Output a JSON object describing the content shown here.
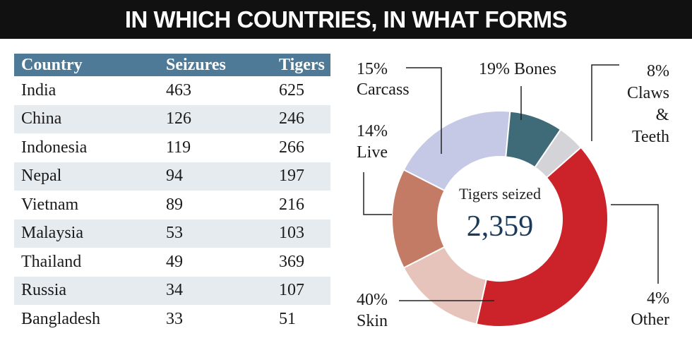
{
  "header": {
    "title": "IN WHICH COUNTRIES, IN WHAT FORMS"
  },
  "table": {
    "columns": [
      "Country",
      "Seizures",
      "Tigers"
    ],
    "rows": [
      [
        "India",
        "463",
        "625"
      ],
      [
        "China",
        "126",
        "246"
      ],
      [
        "Indonesia",
        "119",
        "266"
      ],
      [
        "Nepal",
        "94",
        "197"
      ],
      [
        "Vietnam",
        "89",
        "216"
      ],
      [
        "Malaysia",
        "53",
        "103"
      ],
      [
        "Thailand",
        "49",
        "369"
      ],
      [
        "Russia",
        "34",
        "107"
      ],
      [
        "Bangladesh",
        "33",
        "51"
      ]
    ]
  },
  "chart_data": [
    {
      "type": "table",
      "columns": [
        "Country",
        "Seizures",
        "Tigers"
      ],
      "categories": [
        "India",
        "China",
        "Indonesia",
        "Nepal",
        "Vietnam",
        "Malaysia",
        "Thailand",
        "Russia",
        "Bangladesh"
      ],
      "series": [
        {
          "name": "Seizures",
          "values": [
            463,
            126,
            119,
            94,
            89,
            53,
            49,
            34,
            33
          ]
        },
        {
          "name": "Tigers",
          "values": [
            625,
            246,
            266,
            197,
            216,
            103,
            369,
            107,
            51
          ]
        }
      ]
    },
    {
      "type": "pie",
      "donut": true,
      "center_label": "Tigers seized",
      "center_value": "2,359",
      "slices": [
        {
          "label": "Bones",
          "value_label": "19%",
          "text": "19% Bones",
          "value": 19,
          "color": "#c6c9e6"
        },
        {
          "label": "Claws & Teeth",
          "value_label": "8%",
          "lines": [
            "8%",
            "Claws",
            "&",
            "Teeth"
          ],
          "value": 8,
          "color": "#3f6b78"
        },
        {
          "label": "Other",
          "value_label": "4%",
          "lines": [
            "4%",
            "Other"
          ],
          "value": 4,
          "color": "#d4d4d8"
        },
        {
          "label": "Skin",
          "value_label": "40%",
          "lines": [
            "40%",
            "Skin"
          ],
          "value": 40,
          "color": "#cc2229"
        },
        {
          "label": "Live",
          "value_label": "14%",
          "lines": [
            "14%",
            "Live"
          ],
          "value": 14,
          "color": "#e6c4bc"
        },
        {
          "label": "Carcass",
          "value_label": "15%",
          "lines": [
            "15%",
            "Carcass"
          ],
          "value": 15,
          "color": "#c47b66"
        }
      ]
    }
  ]
}
